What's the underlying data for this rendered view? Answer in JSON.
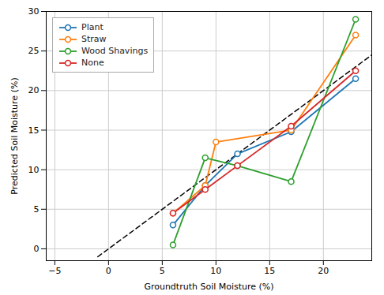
{
  "chart_data": {
    "type": "line",
    "xlabel": "Groundtruth Soil Moisture (%)",
    "ylabel": "Predicted Soil Moisture (%)",
    "xlim": [
      -5.8,
      24.5
    ],
    "ylim": [
      -1.5,
      30
    ],
    "xticks": [
      -5,
      0,
      5,
      10,
      15,
      20
    ],
    "yticks": [
      0,
      5,
      10,
      15,
      20,
      25,
      30
    ],
    "grid": true,
    "legend": "upper left",
    "series": [
      {
        "name": "Plant",
        "color": "#1f77b4",
        "marker": "circle",
        "x": [
          6,
          9,
          12,
          17,
          23
        ],
        "values": [
          3.0,
          8.0,
          12.0,
          14.8,
          21.5
        ]
      },
      {
        "name": "Straw",
        "color": "#ff7f0e",
        "marker": "circle",
        "x": [
          6,
          9,
          10,
          17,
          23
        ],
        "values": [
          4.5,
          8.0,
          13.5,
          15.0,
          27.0
        ]
      },
      {
        "name": "Wood Shavings",
        "color": "#2ca02c",
        "marker": "circle",
        "x": [
          6,
          9,
          12,
          17,
          23
        ],
        "values": [
          0.5,
          11.5,
          10.5,
          8.5,
          29.0
        ]
      },
      {
        "name": "None",
        "color": "#d62728",
        "marker": "circle",
        "x": [
          6,
          9,
          12,
          17,
          23
        ],
        "values": [
          4.5,
          7.5,
          10.5,
          15.5,
          22.5
        ]
      }
    ],
    "reference_line": {
      "x": [
        -1,
        24.5
      ],
      "values": [
        -1,
        24.5
      ],
      "color": "black",
      "line_style": "dashed"
    }
  }
}
